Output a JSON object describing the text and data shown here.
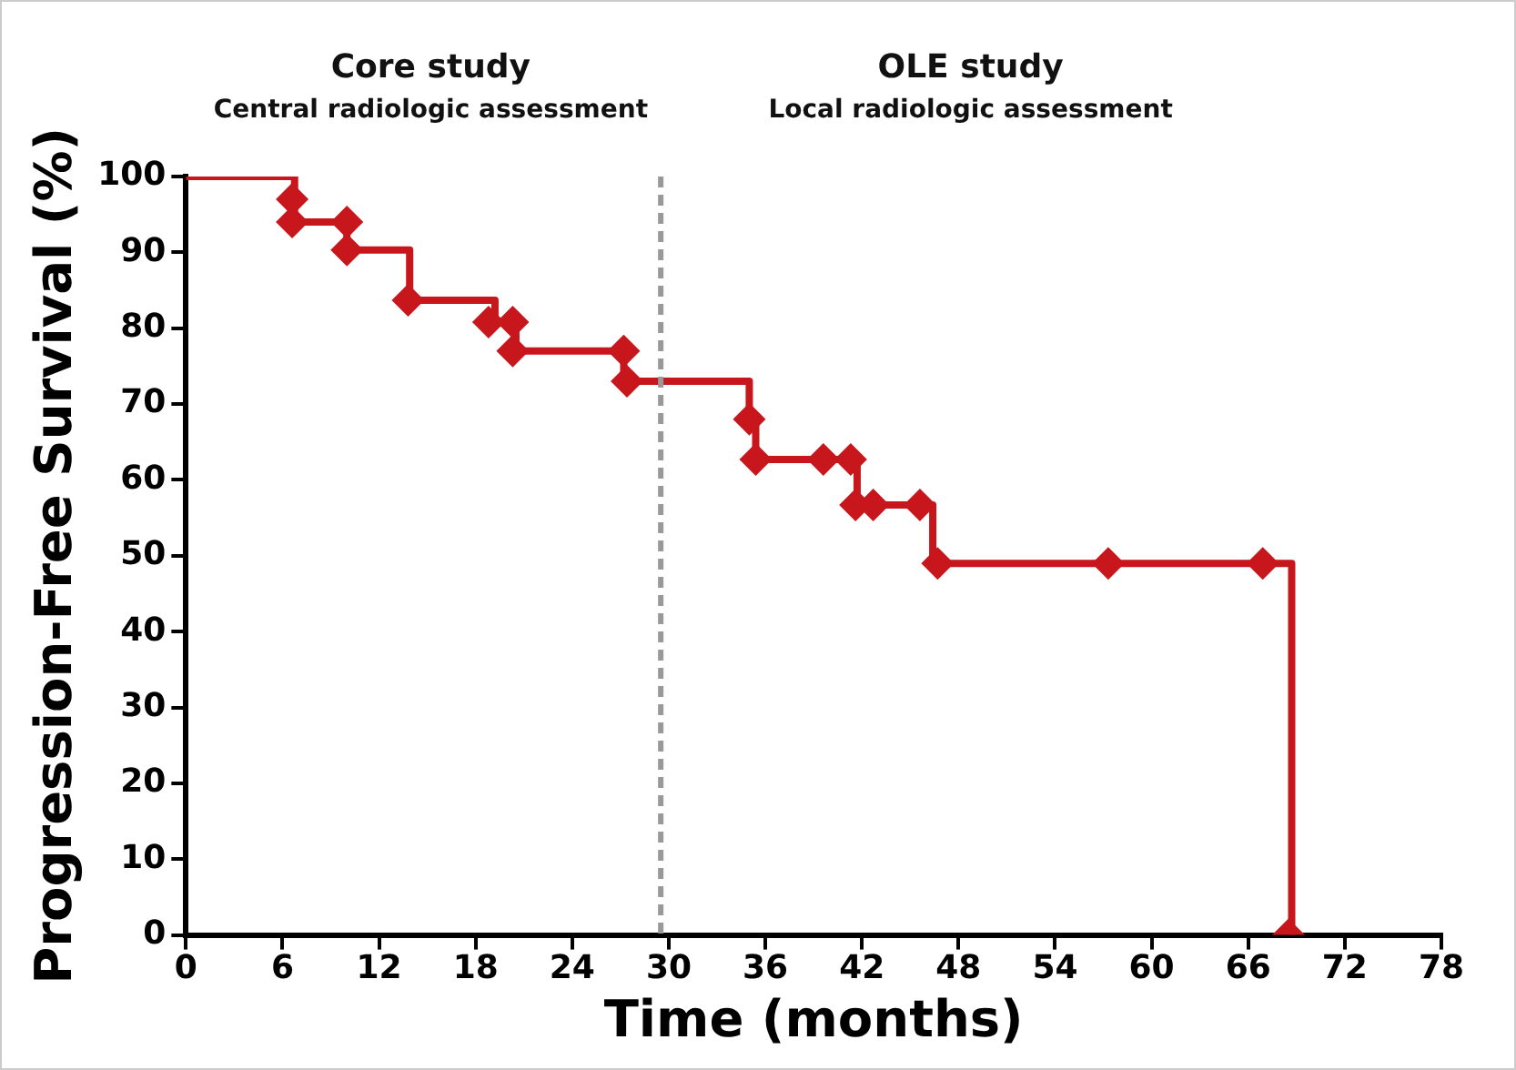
{
  "chart_data": {
    "type": "step",
    "xlabel": "Time (months)",
    "ylabel": "Progression-Free Survival (%)",
    "annotations": [
      "Core study",
      "Central radiologic assessment",
      "OLE study",
      "Local radiologic assessment"
    ],
    "xlim": [
      0,
      78
    ],
    "xticks": [
      0,
      6,
      12,
      18,
      24,
      30,
      36,
      42,
      48,
      54,
      60,
      66,
      72,
      78
    ],
    "ylim": [
      0,
      100
    ],
    "yticks": [
      0,
      10,
      20,
      30,
      40,
      50,
      60,
      70,
      80,
      90,
      100
    ],
    "grid": false,
    "legend": false,
    "ref_lines": [
      {
        "axis": "x",
        "value": 29.5,
        "color": "#999999",
        "line_style": "dashed"
      }
    ],
    "series": [
      {
        "type": "step",
        "color": "#c8161d",
        "marker": "none",
        "x": [
          0,
          6.75,
          10,
          13.9,
          19.2,
          20.5,
          27.2,
          35,
          35.4,
          41.7,
          46.4,
          68.7
        ],
        "values": [
          100,
          94,
          90.3,
          83.7,
          80.8,
          77,
          73,
          68,
          62.7,
          56.7,
          49,
          0
        ]
      },
      {
        "type": "scatter",
        "color": "#c8161d",
        "marker": "diamond",
        "x": [
          6.6,
          6.6,
          10,
          10,
          13.8,
          18.8,
          20.3,
          20.3,
          27.2,
          27.4,
          35,
          35.4,
          39.6,
          41.3,
          41.6,
          42.7,
          45.6,
          46.7,
          57.3,
          66.9,
          68.5
        ],
        "values": [
          97,
          94,
          94,
          90.3,
          83.7,
          80.8,
          80.8,
          77,
          77,
          73,
          68,
          62.7,
          62.7,
          62.7,
          56.7,
          56.7,
          56.7,
          49,
          49,
          49,
          0
        ]
      }
    ]
  }
}
